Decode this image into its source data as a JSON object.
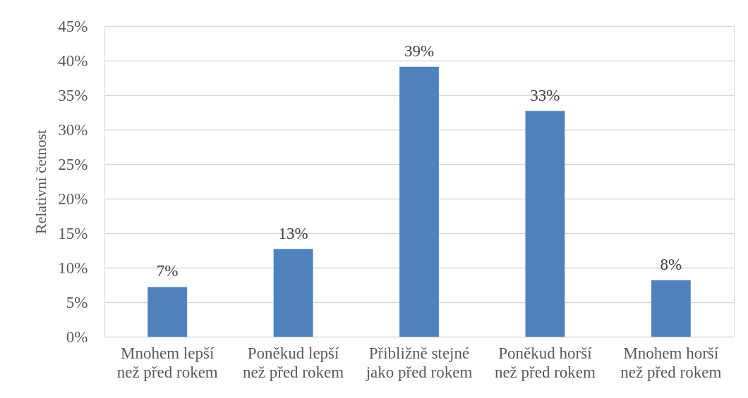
{
  "chart_data": {
    "type": "bar",
    "categories": [
      "Mnohem lepší\nnež před rokem",
      "Poněkud lepší\nnež před rokem",
      "Přibližně stejné\njako před rokem",
      "Poněkud horší\nnež před rokem",
      "Mnohem horší\nnež před rokem"
    ],
    "values": [
      7.2,
      12.7,
      39.1,
      32.7,
      8.2
    ],
    "value_labels": [
      "7%",
      "13%",
      "39%",
      "33%",
      "8%"
    ],
    "color": "#4f81bd",
    "ylabel": "Relativní četnost",
    "ylim": [
      0,
      45
    ],
    "yticks": [
      {
        "value": 0,
        "label": "0%"
      },
      {
        "value": 5,
        "label": "5%"
      },
      {
        "value": 10,
        "label": "10%"
      },
      {
        "value": 15,
        "label": "15%"
      },
      {
        "value": 20,
        "label": "20%"
      },
      {
        "value": 25,
        "label": "25%"
      },
      {
        "value": 30,
        "label": "30%"
      },
      {
        "value": 35,
        "label": "35%"
      },
      {
        "value": 40,
        "label": "40%"
      },
      {
        "value": 45,
        "label": "45%"
      }
    ],
    "grid": "y"
  }
}
